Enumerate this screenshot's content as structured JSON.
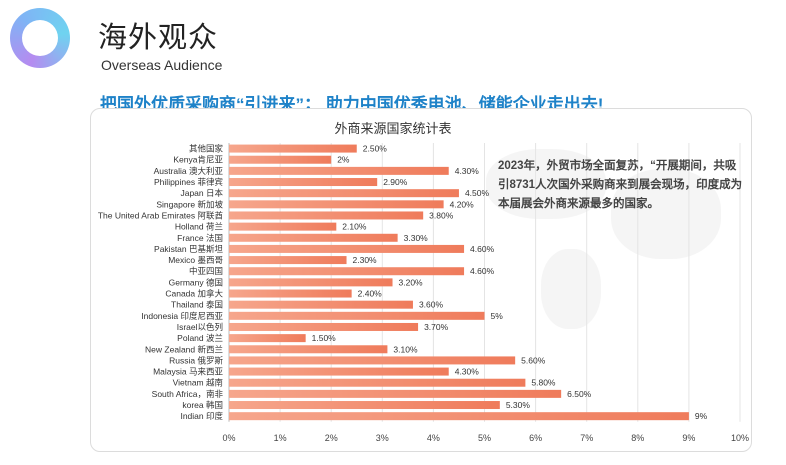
{
  "header": {
    "title_cn": "海外观众",
    "title_en": "Overseas Audience",
    "headline": "把国外优质采购商“引进来”； 助力中国优秀电池、储能企业走出去!"
  },
  "note": "2023年，外贸市场全面复苏，“开展期间，共吸引8731人次国外采购商来到展会现场，印度成为本届展会外商来源最多的国家。",
  "colors": {
    "bar_start": "#f6a68c",
    "bar_end": "#ef7b5b",
    "accent": "#1e82c8"
  },
  "chart_data": {
    "type": "bar",
    "orientation": "horizontal",
    "title": "外商来源国家统计表",
    "xlim": [
      0,
      10
    ],
    "xticks": [
      "0%",
      "1%",
      "2%",
      "3%",
      "4%",
      "5%",
      "6%",
      "7%",
      "8%",
      "9%",
      "10%"
    ],
    "categories": [
      "其他国家",
      "Kenya肯尼亚",
      "Australia 澳大利亚",
      "Philippines 菲律宾",
      "Japan 日本",
      "Singapore 新加坡",
      "The United Arab Emirates 阿联酋",
      "Holland 荷兰",
      "France 法国",
      "Pakistan 巴基斯坦",
      "Mexico 墨西哥",
      "中亚四国",
      "Germany 德国",
      "Canada 加拿大",
      "Thailand 泰国",
      "Indonesia 印度尼西亚",
      "Israel以色列",
      "Poland 波兰",
      "New Zealand 新西兰",
      "Russia 俄罗斯",
      "Malaysia 马来西亚",
      "Vietnam 越南",
      "South Africa，南非",
      "korea 韩国",
      "Indian 印度"
    ],
    "values": [
      2.5,
      2,
      4.3,
      2.9,
      4.5,
      4.2,
      3.8,
      2.1,
      3.3,
      4.6,
      2.3,
      4.6,
      3.2,
      2.4,
      3.6,
      5,
      3.7,
      1.5,
      3.1,
      5.6,
      4.3,
      5.8,
      6.5,
      5.3,
      9
    ],
    "labels": [
      "2.50%",
      "2%",
      "4.30%",
      "2.90%",
      "4.50%",
      "4.20%",
      "3.80%",
      "2.10%",
      "3.30%",
      "4.60%",
      "2.30%",
      "4.60%",
      "3.20%",
      "2.40%",
      "3.60%",
      "5%",
      "3.70%",
      "1.50%",
      "3.10%",
      "5.60%",
      "4.30%",
      "5.80%",
      "6.50%",
      "5.30%",
      "9%"
    ]
  }
}
